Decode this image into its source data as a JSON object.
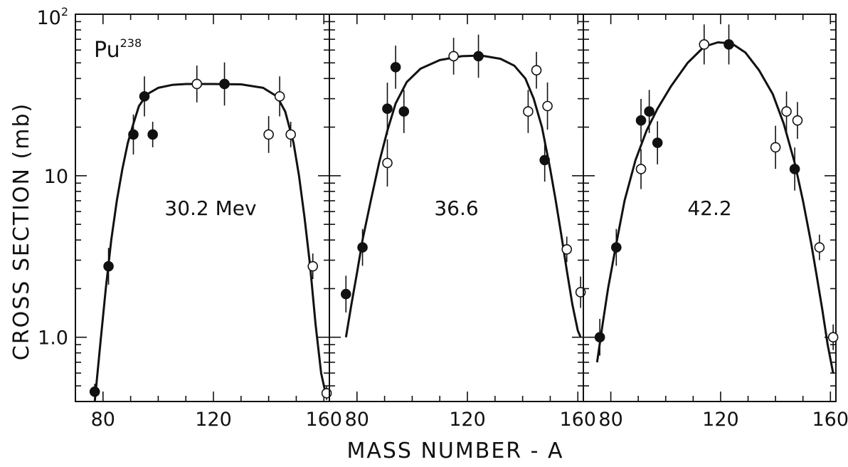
{
  "chart_data": {
    "type": "scatter",
    "ylabel": "CROSS SECTION (mb)",
    "xlabel": "MASS NUMBER - A",
    "yscale": "log",
    "ylim": [
      0.4,
      100
    ],
    "xlim": [
      70,
      162
    ],
    "y_ticks": [
      {
        "value": 1,
        "label": "1.0"
      },
      {
        "value": 10,
        "label": "10"
      },
      {
        "value": 100,
        "label": "10",
        "sup": "2"
      }
    ],
    "nucleus_label": {
      "symbol": "Pu",
      "mass": "238"
    },
    "colors": {
      "filled": "#111111",
      "open": "#ffffff",
      "stroke": "#111111"
    },
    "panels": [
      {
        "label": "30.2 Mev",
        "x_ticks": [
          80,
          120,
          160
        ],
        "filled": [
          {
            "x": 77,
            "y": 0.46,
            "err": 1.12
          },
          {
            "x": 82,
            "y": 2.75,
            "err": 1.3
          },
          {
            "x": 91,
            "y": 18.0,
            "err": 1.33
          },
          {
            "x": 95,
            "y": 31.0,
            "err": 1.33
          },
          {
            "x": 98,
            "y": 18.0,
            "err": 1.2
          },
          {
            "x": 124,
            "y": 37.0,
            "err": 1.36
          }
        ],
        "open": [
          {
            "x": 114,
            "y": 37.0,
            "err": 1.3
          },
          {
            "x": 140,
            "y": 18.0,
            "err": 1.3
          },
          {
            "x": 144,
            "y": 31.0,
            "err": 1.33
          },
          {
            "x": 148,
            "y": 18.0,
            "err": 1.2
          },
          {
            "x": 156,
            "y": 2.75,
            "err": 1.2
          },
          {
            "x": 161,
            "y": 0.45,
            "err": 1.1
          }
        ],
        "curve": {
          "x": [
            77,
            79,
            81,
            83,
            85,
            87,
            89,
            91,
            93,
            96,
            100,
            105,
            110,
            120,
            130,
            138,
            143,
            146,
            149,
            151,
            153,
            155,
            157,
            159,
            161
          ],
          "y": [
            0.4,
            0.9,
            2.0,
            4.0,
            7.0,
            11.0,
            16.0,
            21.0,
            27.0,
            32.0,
            35.0,
            36.5,
            37.0,
            37.0,
            36.8,
            35.0,
            31.0,
            25.0,
            16.0,
            10.0,
            5.5,
            2.8,
            1.2,
            0.6,
            0.42
          ]
        }
      },
      {
        "label": "36.6",
        "x_ticks": [
          80,
          120,
          160
        ],
        "filled": [
          {
            "x": 76,
            "y": 1.85,
            "err": 1.3
          },
          {
            "x": 82,
            "y": 3.6,
            "err": 1.3
          },
          {
            "x": 91,
            "y": 26.0,
            "err": 1.45
          },
          {
            "x": 94,
            "y": 47.0,
            "err": 1.36
          },
          {
            "x": 97,
            "y": 25.0,
            "err": 1.36
          },
          {
            "x": 124,
            "y": 55.0,
            "err": 1.36
          },
          {
            "x": 148,
            "y": 12.5,
            "err": 1.36
          }
        ],
        "open": [
          {
            "x": 91,
            "y": 12.0,
            "err": 1.4
          },
          {
            "x": 115,
            "y": 55.0,
            "err": 1.3
          },
          {
            "x": 142,
            "y": 25.0,
            "err": 1.36
          },
          {
            "x": 145,
            "y": 45.0,
            "err": 1.3
          },
          {
            "x": 149,
            "y": 27.0,
            "err": 1.4
          },
          {
            "x": 156,
            "y": 3.5,
            "err": 1.2
          },
          {
            "x": 161,
            "y": 1.9,
            "err": 1.25
          }
        ],
        "curve": {
          "x": [
            76,
            78,
            80,
            82,
            85,
            88,
            91,
            94,
            98,
            103,
            110,
            118,
            125,
            132,
            137,
            141,
            144,
            147,
            150,
            152,
            154,
            156,
            158,
            160,
            161
          ],
          "y": [
            1.0,
            1.6,
            2.5,
            4.0,
            7.0,
            12.0,
            19.0,
            28.0,
            38.0,
            46.0,
            52.0,
            55.0,
            55.5,
            53.0,
            48.0,
            40.0,
            30.0,
            20.0,
            11.0,
            7.0,
            4.3,
            2.6,
            1.6,
            1.1,
            1.0
          ]
        }
      },
      {
        "label": "42.2",
        "x_ticks": [
          80,
          120,
          160
        ],
        "filled": [
          {
            "x": 76,
            "y": 1.0,
            "err": 1.3
          },
          {
            "x": 82,
            "y": 3.6,
            "err": 1.3
          },
          {
            "x": 91,
            "y": 22.0,
            "err": 1.36
          },
          {
            "x": 94,
            "y": 25.0,
            "err": 1.36
          },
          {
            "x": 97,
            "y": 16.0,
            "err": 1.36
          },
          {
            "x": 123,
            "y": 65.0,
            "err": 1.33
          },
          {
            "x": 147,
            "y": 11.0,
            "err": 1.36
          }
        ],
        "open": [
          {
            "x": 91,
            "y": 11.0,
            "err": 1.33
          },
          {
            "x": 114,
            "y": 65.0,
            "err": 1.33
          },
          {
            "x": 140,
            "y": 15.0,
            "err": 1.36
          },
          {
            "x": 144,
            "y": 25.0,
            "err": 1.33
          },
          {
            "x": 148,
            "y": 22.0,
            "err": 1.3
          },
          {
            "x": 156,
            "y": 3.6,
            "err": 1.2
          },
          {
            "x": 161,
            "y": 1.0,
            "err": 1.2
          }
        ],
        "curve": {
          "x": [
            75,
            77,
            79,
            82,
            85,
            89,
            93,
            97,
            102,
            108,
            114,
            119,
            124,
            129,
            134,
            139,
            143,
            147,
            150,
            153,
            155,
            157,
            159,
            161
          ],
          "y": [
            0.7,
            1.2,
            2.0,
            3.8,
            7.0,
            12.5,
            19.0,
            26.0,
            36.0,
            50.0,
            63.0,
            67.0,
            66.0,
            58.0,
            45.0,
            32.0,
            21.0,
            12.0,
            7.0,
            3.8,
            2.4,
            1.5,
            0.9,
            0.6
          ]
        }
      }
    ]
  }
}
